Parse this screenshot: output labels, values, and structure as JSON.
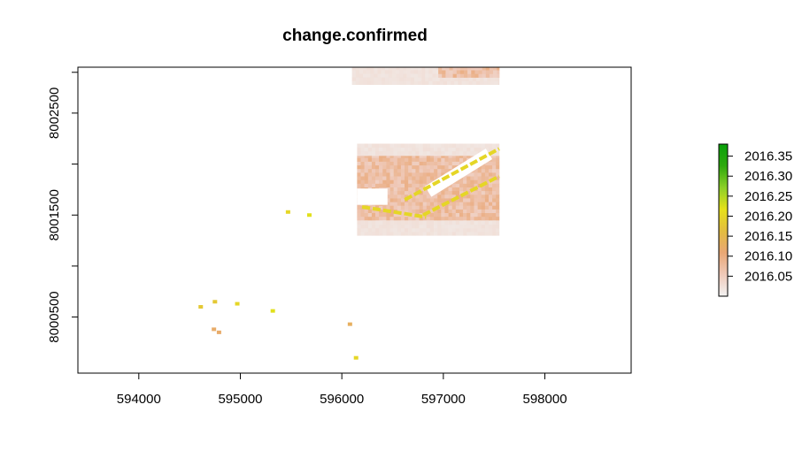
{
  "chart_data": {
    "type": "heatmap",
    "title": "change.confirmed",
    "xlabel": "",
    "ylabel": "",
    "xlim": [
      593400,
      598850
    ],
    "ylim": [
      7999950,
      8002950
    ],
    "x_ticks": [
      594000,
      595000,
      596000,
      597000,
      598000
    ],
    "x_tick_labels": [
      "594000",
      "595000",
      "596000",
      "597000",
      "598000"
    ],
    "y_ticks": [
      8000500,
      8001000,
      8001500,
      8002000,
      8002500,
      8002900
    ],
    "y_tick_labels": [
      "8000500",
      "",
      "8001500",
      "",
      "8002500",
      ""
    ],
    "legend": {
      "placement": "right",
      "zlim": [
        2016.0,
        2016.38
      ],
      "ticks": [
        2016.05,
        2016.1,
        2016.15,
        2016.2,
        2016.25,
        2016.3,
        2016.35
      ],
      "tick_labels": [
        "2016.05",
        "2016.10",
        "2016.15",
        "2016.20",
        "2016.25",
        "2016.30",
        "2016.35"
      ],
      "gradient_colors": [
        "#f2f2f2",
        "#efc9b9",
        "#e9a775",
        "#e3bd40",
        "#e6e11a",
        "#8ccf28",
        "#2ea90d",
        "#08a00a"
      ]
    },
    "grid": false,
    "regions": [
      {
        "name": "north strip",
        "x": [
          596100,
          597550
        ],
        "y": [
          8002780,
          8002950
        ],
        "value": 2016.02
      },
      {
        "name": "north strip change",
        "x": [
          596950,
          597550
        ],
        "y": [
          8002850,
          8002950
        ],
        "value": 2016.07
      },
      {
        "name": "main tile",
        "x": [
          596150,
          597550
        ],
        "y": [
          8001300,
          8002200
        ],
        "value": 2016.02
      },
      {
        "name": "main change area",
        "x": [
          596150,
          597550
        ],
        "y": [
          8001450,
          8002080
        ],
        "value": 2016.07
      }
    ],
    "isolated_pixels": [
      {
        "x": 594610,
        "y": 8000600,
        "value": 2016.18
      },
      {
        "x": 594750,
        "y": 8000650,
        "value": 2016.18
      },
      {
        "x": 594970,
        "y": 8000630,
        "value": 2016.2
      },
      {
        "x": 595320,
        "y": 8000560,
        "value": 2016.22
      },
      {
        "x": 595470,
        "y": 8001530,
        "value": 2016.2
      },
      {
        "x": 595680,
        "y": 8001500,
        "value": 2016.22
      },
      {
        "x": 594740,
        "y": 8000380,
        "value": 2016.12
      },
      {
        "x": 594790,
        "y": 8000350,
        "value": 2016.12
      },
      {
        "x": 596080,
        "y": 8000430,
        "value": 2016.13
      },
      {
        "x": 596140,
        "y": 8000100,
        "value": 2016.2
      }
    ],
    "features": [
      {
        "name": "upper diagonal edge",
        "from": [
          596620,
          8001650
        ],
        "to": [
          597550,
          8002150
        ],
        "value": 2016.2
      },
      {
        "name": "lower diagonal edge",
        "from": [
          596800,
          8001500
        ],
        "to": [
          597550,
          8001880
        ],
        "value": 2016.2
      },
      {
        "name": "lower west edge",
        "from": [
          596200,
          8001580
        ],
        "to": [
          596830,
          8001480
        ],
        "value": 2016.2
      }
    ],
    "gaps": [
      {
        "name": "upper diagonal gap",
        "from": [
          596850,
          8001730
        ],
        "to": [
          597450,
          8002100
        ]
      },
      {
        "name": "west gap",
        "x": [
          596150,
          596450
        ],
        "y": [
          8001600,
          8001760
        ]
      }
    ]
  }
}
